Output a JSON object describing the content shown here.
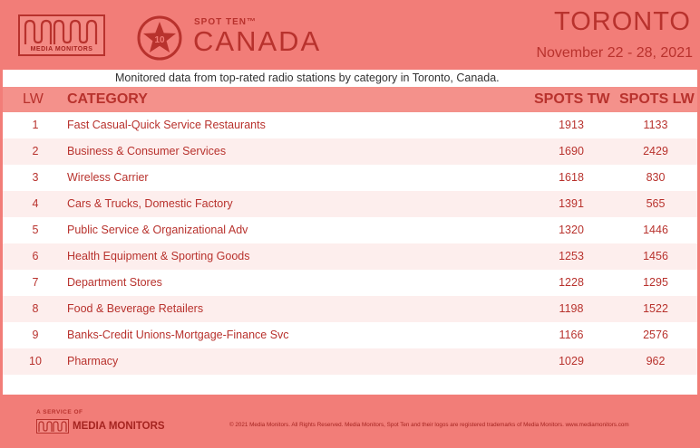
{
  "header": {
    "logo_text": "MEDIA MONITORS",
    "badge_number": "10",
    "spot_ten": "SPOT TEN™",
    "country": "CANADA",
    "city": "TORONTO",
    "dates": "November 22 - 28, 2021"
  },
  "subtitle": "Monitored data from top-rated radio stations by category in Toronto, Canada.",
  "table": {
    "columns": [
      "LW",
      "CATEGORY",
      "SPOTS TW",
      "SPOTS LW"
    ],
    "rows": [
      {
        "lw": "1",
        "category": "Fast Casual-Quick Service Restaurants",
        "spots_tw": "1913",
        "spots_lw": "1133"
      },
      {
        "lw": "2",
        "category": "Business & Consumer Services",
        "spots_tw": "1690",
        "spots_lw": "2429"
      },
      {
        "lw": "3",
        "category": "Wireless Carrier",
        "spots_tw": "1618",
        "spots_lw": "830"
      },
      {
        "lw": "4",
        "category": "Cars & Trucks, Domestic Factory",
        "spots_tw": "1391",
        "spots_lw": "565"
      },
      {
        "lw": "5",
        "category": "Public Service & Organizational Adv",
        "spots_tw": "1320",
        "spots_lw": "1446"
      },
      {
        "lw": "6",
        "category": "Health Equipment & Sporting Goods",
        "spots_tw": "1253",
        "spots_lw": "1456"
      },
      {
        "lw": "7",
        "category": "Department Stores",
        "spots_tw": "1228",
        "spots_lw": "1295"
      },
      {
        "lw": "8",
        "category": "Food & Beverage Retailers",
        "spots_tw": "1198",
        "spots_lw": "1522"
      },
      {
        "lw": "9",
        "category": "Banks-Credit Unions-Mortgage-Finance Svc",
        "spots_tw": "1166",
        "spots_lw": "2576"
      },
      {
        "lw": "10",
        "category": "Pharmacy",
        "spots_tw": "1029",
        "spots_lw": "962"
      }
    ]
  },
  "footer": {
    "service_of": "A SERVICE OF",
    "logo_text": "MEDIA MONITORS",
    "copyright": "© 2021 Media Monitors. All Rights Reserved. Media Monitors, Spot Ten and their logos are registered trademarks of Media Monitors. www.mediamonitors.com"
  },
  "colors": {
    "background": "#f27d78",
    "accent": "#b8322d",
    "header_row": "#f4918b",
    "row_alt": "#fdeeed"
  }
}
